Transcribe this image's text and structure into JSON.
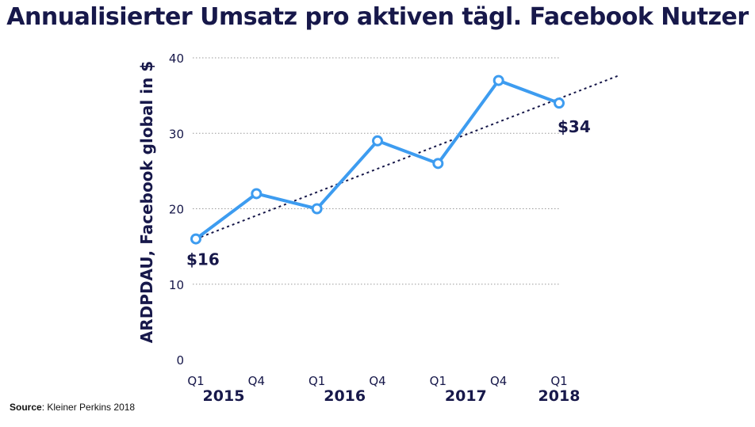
{
  "source": {
    "prefix": "Source",
    "text": ": Kleiner Perkins 2018"
  },
  "chart_data": {
    "type": "line",
    "title": "Annualisierter Umsatz pro aktiven tägl. Facebook Nutzer",
    "ylabel": "ARDPDAU, Facebook global in $",
    "xlabel": "",
    "ylim": [
      0,
      40
    ],
    "yticks": [
      0,
      10,
      20,
      30,
      40
    ],
    "grid": true,
    "categories": [
      "Q1",
      "Q4",
      "Q1",
      "Q4",
      "Q1",
      "Q4",
      "Q1"
    ],
    "years": [
      {
        "label": "2015",
        "index": 0
      },
      {
        "label": "2016",
        "index": 2
      },
      {
        "label": "2017",
        "index": 4
      },
      {
        "label": "2018",
        "index": 6
      }
    ],
    "series": [
      {
        "values": [
          16,
          22,
          20,
          29,
          26,
          37,
          34
        ],
        "color": "#3d9cf0"
      }
    ],
    "trendline": {
      "from": 16,
      "slope_per_step": 3.1,
      "extend_steps": 7,
      "color": "#17184a",
      "style": "dotted"
    },
    "annotations": [
      {
        "text": "$16",
        "index": 0
      },
      {
        "text": "$34",
        "index": 6
      }
    ]
  }
}
